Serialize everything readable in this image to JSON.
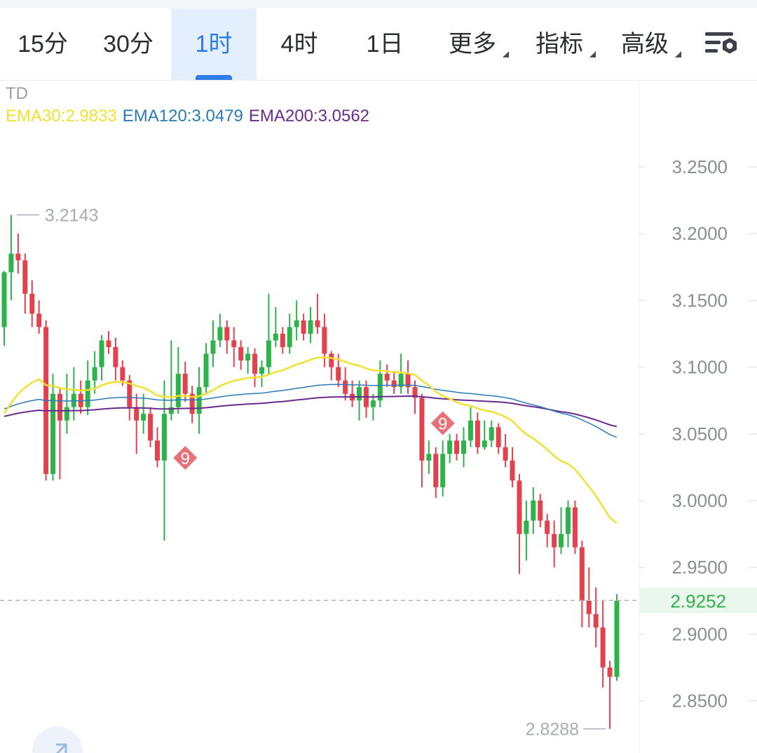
{
  "toolbar": {
    "tabs": [
      {
        "label": "15分"
      },
      {
        "label": "30分"
      },
      {
        "label": "1时"
      },
      {
        "label": "4时"
      },
      {
        "label": "1日"
      },
      {
        "label": "更多"
      },
      {
        "label": "指标"
      },
      {
        "label": "高级"
      }
    ],
    "active_tab": "1时",
    "settings_icon": "chart-settings-icon"
  },
  "legend": {
    "td_label": "TD",
    "ema30": {
      "label": "EMA30:2.9833",
      "color": "#f2e030"
    },
    "ema120": {
      "label": "EMA120:3.0479",
      "color": "#2a7ab8"
    },
    "ema200": {
      "label": "EMA200:3.0562",
      "color": "#6a2c8c"
    }
  },
  "chart_data": {
    "type": "candlestick",
    "y_axis": {
      "ticks": [
        "3.2500",
        "3.2000",
        "3.1500",
        "3.1000",
        "3.0500",
        "3.0000",
        "2.9500",
        "2.9000",
        "2.8500"
      ],
      "range": [
        2.82,
        3.29
      ]
    },
    "current_price": "2.9252",
    "high_label": "3.2143",
    "low_label": "2.8288",
    "td_markers": [
      {
        "label": "9",
        "price": 3.032
      },
      {
        "label": "9",
        "price": 3.058
      }
    ],
    "colors": {
      "up": "#2eb34a",
      "down": "#e2424e"
    },
    "candles": [
      [
        3.13,
        3.171,
        3.116,
        3.172
      ],
      [
        3.171,
        3.185,
        3.15,
        3.214
      ],
      [
        3.185,
        3.18,
        3.17,
        3.2
      ],
      [
        3.18,
        3.155,
        3.14,
        3.185
      ],
      [
        3.155,
        3.14,
        3.13,
        3.165
      ],
      [
        3.14,
        3.13,
        3.125,
        3.15
      ],
      [
        3.13,
        3.02,
        3.015,
        3.135
      ],
      [
        3.02,
        3.08,
        3.015,
        3.095
      ],
      [
        3.08,
        3.06,
        3.016,
        3.085
      ],
      [
        3.06,
        3.07,
        3.05,
        3.095
      ],
      [
        3.07,
        3.08,
        3.06,
        3.1
      ],
      [
        3.08,
        3.07,
        3.065,
        3.09
      ],
      [
        3.07,
        3.09,
        3.064,
        3.105
      ],
      [
        3.09,
        3.1,
        3.08,
        3.112
      ],
      [
        3.1,
        3.12,
        3.09,
        3.124
      ],
      [
        3.12,
        3.115,
        3.11,
        3.127
      ],
      [
        3.115,
        3.1,
        3.09,
        3.122
      ],
      [
        3.1,
        3.09,
        3.086,
        3.105
      ],
      [
        3.09,
        3.07,
        3.06,
        3.094
      ],
      [
        3.07,
        3.06,
        3.035,
        3.08
      ],
      [
        3.06,
        3.065,
        3.05,
        3.08
      ],
      [
        3.065,
        3.045,
        3.04,
        3.07
      ],
      [
        3.045,
        3.03,
        3.025,
        3.055
      ],
      [
        3.03,
        3.065,
        2.97,
        3.09
      ],
      [
        3.065,
        3.07,
        3.06,
        3.12
      ],
      [
        3.07,
        3.095,
        3.065,
        3.115
      ],
      [
        3.095,
        3.08,
        3.074,
        3.104
      ],
      [
        3.08,
        3.065,
        3.058,
        3.086
      ],
      [
        3.065,
        3.085,
        3.05,
        3.1
      ],
      [
        3.085,
        3.11,
        3.08,
        3.118
      ],
      [
        3.11,
        3.12,
        3.1,
        3.135
      ],
      [
        3.12,
        3.13,
        3.115,
        3.14
      ],
      [
        3.13,
        3.12,
        3.11,
        3.135
      ],
      [
        3.12,
        3.115,
        3.1,
        3.13
      ],
      [
        3.115,
        3.105,
        3.098,
        3.12
      ],
      [
        3.105,
        3.11,
        3.095,
        3.115
      ],
      [
        3.11,
        3.095,
        3.085,
        3.114
      ],
      [
        3.095,
        3.1,
        3.085,
        3.105
      ],
      [
        3.1,
        3.12,
        3.095,
        3.155
      ],
      [
        3.12,
        3.125,
        3.115,
        3.145
      ],
      [
        3.125,
        3.115,
        3.11,
        3.13
      ],
      [
        3.115,
        3.13,
        3.11,
        3.14
      ],
      [
        3.13,
        3.135,
        3.12,
        3.15
      ],
      [
        3.135,
        3.125,
        3.12,
        3.14
      ],
      [
        3.125,
        3.135,
        3.118,
        3.145
      ],
      [
        3.135,
        3.13,
        3.125,
        3.155
      ],
      [
        3.13,
        3.11,
        3.1,
        3.14
      ],
      [
        3.11,
        3.1,
        3.09,
        3.112
      ],
      [
        3.1,
        3.09,
        3.085,
        3.11
      ],
      [
        3.09,
        3.08,
        3.075,
        3.1
      ],
      [
        3.08,
        3.075,
        3.07,
        3.09
      ],
      [
        3.075,
        3.085,
        3.06,
        3.09
      ],
      [
        3.085,
        3.07,
        3.062,
        3.09
      ],
      [
        3.07,
        3.075,
        3.06,
        3.08
      ],
      [
        3.075,
        3.095,
        3.07,
        3.105
      ],
      [
        3.095,
        3.09,
        3.085,
        3.102
      ],
      [
        3.09,
        3.085,
        3.08,
        3.097
      ],
      [
        3.085,
        3.095,
        3.08,
        3.11
      ],
      [
        3.095,
        3.085,
        3.08,
        3.105
      ],
      [
        3.085,
        3.077,
        3.065,
        3.09
      ],
      [
        3.077,
        3.03,
        3.01,
        3.08
      ],
      [
        3.03,
        3.035,
        3.02,
        3.045
      ],
      [
        3.035,
        3.01,
        3.002,
        3.04
      ],
      [
        3.01,
        3.035,
        3.003,
        3.045
      ],
      [
        3.035,
        3.045,
        3.028,
        3.05
      ],
      [
        3.045,
        3.035,
        3.03,
        3.05
      ],
      [
        3.035,
        3.045,
        3.025,
        3.055
      ],
      [
        3.045,
        3.06,
        3.04,
        3.07
      ],
      [
        3.06,
        3.04,
        3.035,
        3.066
      ],
      [
        3.04,
        3.045,
        3.038,
        3.06
      ],
      [
        3.045,
        3.055,
        3.04,
        3.06
      ],
      [
        3.055,
        3.04,
        3.035,
        3.058
      ],
      [
        3.04,
        3.03,
        3.025,
        3.05
      ],
      [
        3.03,
        3.015,
        3.01,
        3.04
      ],
      [
        3.015,
        2.975,
        2.945,
        3.02
      ],
      [
        2.975,
        2.985,
        2.955,
        3.0
      ],
      [
        2.985,
        3.0,
        2.975,
        3.01
      ],
      [
        3.0,
        2.985,
        2.98,
        3.005
      ],
      [
        2.985,
        2.975,
        2.965,
        2.99
      ],
      [
        2.975,
        2.965,
        2.95,
        2.985
      ],
      [
        2.965,
        2.975,
        2.96,
        2.995
      ],
      [
        2.975,
        2.995,
        2.965,
        3.0
      ],
      [
        2.995,
        2.965,
        2.96,
        3.0
      ],
      [
        2.965,
        2.925,
        2.905,
        2.97
      ],
      [
        2.925,
        2.915,
        2.905,
        2.95
      ],
      [
        2.915,
        2.905,
        2.89,
        2.935
      ],
      [
        2.905,
        2.875,
        2.86,
        2.925
      ],
      [
        2.875,
        2.868,
        2.829,
        2.88
      ],
      [
        2.868,
        2.925,
        2.865,
        2.93
      ]
    ]
  }
}
